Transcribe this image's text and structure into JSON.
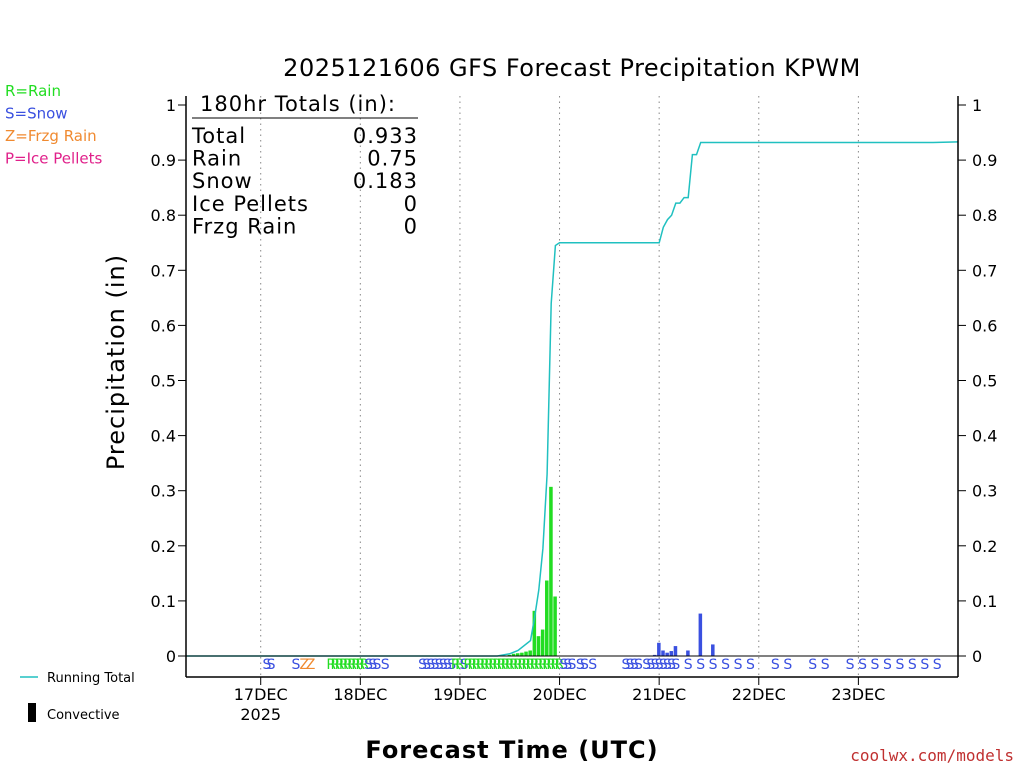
{
  "chart_data": {
    "type": "bar",
    "title": "2025121606 GFS Forecast Precipitation KPWM",
    "xlabel": "Forecast Time (UTC)",
    "ylabel": "Precipitation (in)",
    "ylim": [
      0,
      1
    ],
    "yticks": [
      0,
      0.1,
      0.2,
      0.3,
      0.4,
      0.5,
      0.6,
      0.7,
      0.8,
      0.9,
      1
    ],
    "ytick_labels": [
      "0",
      "0.1",
      "0.2",
      "0.3",
      "0.4",
      "0.5",
      "0.6",
      "0.7",
      "0.8",
      "0.9",
      "1"
    ],
    "xlim_hours": [
      0,
      186
    ],
    "xticks": [
      {
        "hour": 18,
        "label": "17DEC",
        "sublabel": "2025"
      },
      {
        "hour": 42,
        "label": "18DEC",
        "sublabel": ""
      },
      {
        "hour": 66,
        "label": "19DEC",
        "sublabel": ""
      },
      {
        "hour": 90,
        "label": "20DEC",
        "sublabel": ""
      },
      {
        "hour": 114,
        "label": "21DEC",
        "sublabel": ""
      },
      {
        "hour": 138,
        "label": "22DEC",
        "sublabel": ""
      },
      {
        "hour": 162,
        "label": "23DEC",
        "sublabel": ""
      }
    ],
    "grid": "vertical dotted",
    "legend": "top-left",
    "legend_entries": [
      {
        "code": "R",
        "label": "R=Rain",
        "color": "#22dd22"
      },
      {
        "code": "S",
        "label": "S=Snow",
        "color": "#3a50e0"
      },
      {
        "code": "Z",
        "label": "Z=Frzg Rain",
        "color": "#f08a30"
      },
      {
        "code": "P",
        "label": "P=Ice Pellets",
        "color": "#e0208a"
      }
    ],
    "totals_box": {
      "header": "180hr Totals (in):",
      "rows": [
        {
          "label": "Total",
          "value": "0.933"
        },
        {
          "label": "Rain",
          "value": "0.75"
        },
        {
          "label": "Snow",
          "value": "0.183"
        },
        {
          "label": "Ice Pellets",
          "value": "0"
        },
        {
          "label": "Frzg Rain",
          "value": "0"
        }
      ]
    },
    "bars": [
      {
        "hour": 78,
        "value": 0.002,
        "type": "rain"
      },
      {
        "hour": 79,
        "value": 0.004,
        "type": "rain"
      },
      {
        "hour": 80,
        "value": 0.005,
        "type": "rain"
      },
      {
        "hour": 81,
        "value": 0.006,
        "type": "rain"
      },
      {
        "hour": 82,
        "value": 0.008,
        "type": "rain"
      },
      {
        "hour": 83,
        "value": 0.01,
        "type": "rain"
      },
      {
        "hour": 84,
        "value": 0.082,
        "type": "rain"
      },
      {
        "hour": 85,
        "value": 0.036,
        "type": "rain"
      },
      {
        "hour": 86,
        "value": 0.048,
        "type": "rain"
      },
      {
        "hour": 87,
        "value": 0.137,
        "type": "rain"
      },
      {
        "hour": 88,
        "value": 0.307,
        "type": "rain"
      },
      {
        "hour": 89,
        "value": 0.108,
        "type": "rain"
      },
      {
        "hour": 113,
        "value": 0.002,
        "type": "snow"
      },
      {
        "hour": 114,
        "value": 0.024,
        "type": "snow"
      },
      {
        "hour": 115,
        "value": 0.01,
        "type": "snow"
      },
      {
        "hour": 116,
        "value": 0.006,
        "type": "snow"
      },
      {
        "hour": 117,
        "value": 0.009,
        "type": "snow"
      },
      {
        "hour": 118,
        "value": 0.018,
        "type": "snow"
      },
      {
        "hour": 121,
        "value": 0.01,
        "type": "snow"
      },
      {
        "hour": 124,
        "value": 0.077,
        "type": "snow"
      },
      {
        "hour": 127,
        "value": 0.021,
        "type": "snow"
      }
    ],
    "series": [
      {
        "name": "Running Total",
        "color": "#20c0c0",
        "points": [
          [
            0,
            0
          ],
          [
            75,
            0
          ],
          [
            78,
            0.004
          ],
          [
            80,
            0.01
          ],
          [
            83,
            0.028
          ],
          [
            84,
            0.07
          ],
          [
            85,
            0.12
          ],
          [
            86,
            0.195
          ],
          [
            87,
            0.33
          ],
          [
            88,
            0.64
          ],
          [
            89,
            0.745
          ],
          [
            90,
            0.75
          ],
          [
            114,
            0.75
          ],
          [
            115,
            0.778
          ],
          [
            116,
            0.792
          ],
          [
            117,
            0.8
          ],
          [
            118,
            0.822
          ],
          [
            119,
            0.822
          ],
          [
            120,
            0.832
          ],
          [
            121,
            0.832
          ],
          [
            122,
            0.91
          ],
          [
            123,
            0.91
          ],
          [
            124,
            0.932
          ],
          [
            130,
            0.932
          ],
          [
            180,
            0.932
          ],
          [
            186,
            0.933
          ]
        ]
      }
    ],
    "ptype_row": [
      {
        "hour": 19.5,
        "code": "S"
      },
      {
        "hour": 20.5,
        "code": "S"
      },
      {
        "hour": 26.5,
        "code": "S"
      },
      {
        "hour": 28.5,
        "code": "Z"
      },
      {
        "hour": 30,
        "code": "Z"
      },
      {
        "hour": 35,
        "code": "R"
      },
      {
        "hour": 36,
        "code": "R"
      },
      {
        "hour": 37,
        "code": "R"
      },
      {
        "hour": 38,
        "code": "R"
      },
      {
        "hour": 39,
        "code": "R"
      },
      {
        "hour": 40,
        "code": "R"
      },
      {
        "hour": 41,
        "code": "R"
      },
      {
        "hour": 42,
        "code": "R"
      },
      {
        "hour": 43,
        "code": "R"
      },
      {
        "hour": 44,
        "code": "S"
      },
      {
        "hour": 45,
        "code": "S"
      },
      {
        "hour": 46,
        "code": "S"
      },
      {
        "hour": 48,
        "code": "S"
      },
      {
        "hour": 57,
        "code": "S"
      },
      {
        "hour": 58,
        "code": "S"
      },
      {
        "hour": 59,
        "code": "S"
      },
      {
        "hour": 60,
        "code": "S"
      },
      {
        "hour": 61,
        "code": "S"
      },
      {
        "hour": 62,
        "code": "S"
      },
      {
        "hour": 63,
        "code": "S"
      },
      {
        "hour": 64,
        "code": "S"
      },
      {
        "hour": 65,
        "code": "R"
      },
      {
        "hour": 66,
        "code": "R"
      },
      {
        "hour": 67,
        "code": "S"
      },
      {
        "hour": 68,
        "code": "R"
      },
      {
        "hour": 69,
        "code": "R"
      },
      {
        "hour": 70,
        "code": "R"
      },
      {
        "hour": 71,
        "code": "R"
      },
      {
        "hour": 72,
        "code": "R"
      },
      {
        "hour": 73,
        "code": "R"
      },
      {
        "hour": 74,
        "code": "R"
      },
      {
        "hour": 75,
        "code": "R"
      },
      {
        "hour": 76,
        "code": "R"
      },
      {
        "hour": 77,
        "code": "R"
      },
      {
        "hour": 78,
        "code": "R"
      },
      {
        "hour": 79,
        "code": "R"
      },
      {
        "hour": 80,
        "code": "R"
      },
      {
        "hour": 81,
        "code": "R"
      },
      {
        "hour": 82,
        "code": "R"
      },
      {
        "hour": 83,
        "code": "R"
      },
      {
        "hour": 84,
        "code": "R"
      },
      {
        "hour": 85,
        "code": "R"
      },
      {
        "hour": 86,
        "code": "R"
      },
      {
        "hour": 87,
        "code": "R"
      },
      {
        "hour": 88,
        "code": "R"
      },
      {
        "hour": 89,
        "code": "R"
      },
      {
        "hour": 90,
        "code": "R"
      },
      {
        "hour": 91,
        "code": "S"
      },
      {
        "hour": 92,
        "code": "S"
      },
      {
        "hour": 93,
        "code": "S"
      },
      {
        "hour": 95,
        "code": "S"
      },
      {
        "hour": 96,
        "code": "S"
      },
      {
        "hour": 98,
        "code": "S"
      },
      {
        "hour": 106,
        "code": "S"
      },
      {
        "hour": 107,
        "code": "S"
      },
      {
        "hour": 108,
        "code": "S"
      },
      {
        "hour": 109,
        "code": "S"
      },
      {
        "hour": 111,
        "code": "S"
      },
      {
        "hour": 112,
        "code": "S"
      },
      {
        "hour": 113,
        "code": "S"
      },
      {
        "hour": 114,
        "code": "S"
      },
      {
        "hour": 115,
        "code": "S"
      },
      {
        "hour": 116,
        "code": "S"
      },
      {
        "hour": 117,
        "code": "S"
      },
      {
        "hour": 118,
        "code": "S"
      },
      {
        "hour": 121,
        "code": "S"
      },
      {
        "hour": 124,
        "code": "S"
      },
      {
        "hour": 127,
        "code": "S"
      },
      {
        "hour": 130,
        "code": "S"
      },
      {
        "hour": 133,
        "code": "S"
      },
      {
        "hour": 136,
        "code": "S"
      },
      {
        "hour": 142,
        "code": "S"
      },
      {
        "hour": 145,
        "code": "S"
      },
      {
        "hour": 151,
        "code": "S"
      },
      {
        "hour": 154,
        "code": "S"
      },
      {
        "hour": 160,
        "code": "S"
      },
      {
        "hour": 163,
        "code": "S"
      },
      {
        "hour": 166,
        "code": "S"
      },
      {
        "hour": 169,
        "code": "S"
      },
      {
        "hour": 172,
        "code": "S"
      },
      {
        "hour": 175,
        "code": "S"
      },
      {
        "hour": 178,
        "code": "S"
      },
      {
        "hour": 181,
        "code": "S"
      }
    ],
    "bottom_legend": {
      "running_total": "Running Total",
      "convective": "Convective"
    },
    "credit": "coolwx.com/models"
  }
}
